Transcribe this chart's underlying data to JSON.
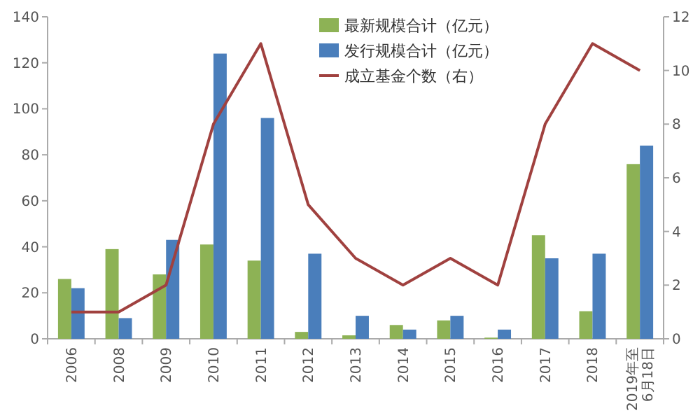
{
  "chart_data": {
    "type": "bar",
    "categories": [
      "2006",
      "2008",
      "2009",
      "2010",
      "2011",
      "2012",
      "2013",
      "2014",
      "2015",
      "2016",
      "2017",
      "2018",
      "2019年至6月18日"
    ],
    "series": [
      {
        "name": "最新规模合计（亿元）",
        "color": "#8db255",
        "values": [
          26,
          39,
          28,
          41,
          34,
          3,
          1.5,
          6,
          8,
          0.5,
          45,
          12,
          76
        ]
      },
      {
        "name": "发行规模合计（亿元）",
        "color": "#4a7ebb",
        "values": [
          22,
          9,
          43,
          124,
          96,
          37,
          10,
          4,
          10,
          4,
          35,
          37,
          84
        ]
      },
      {
        "name": "成立基金个数（右）",
        "color": "#a0413f",
        "type": "line",
        "axis": "y2",
        "values": [
          1,
          1,
          2,
          8,
          11,
          5,
          3,
          2,
          3,
          2,
          8,
          11,
          10
        ]
      }
    ],
    "ylim": [
      0,
      140
    ],
    "yticks": [
      0,
      20,
      40,
      60,
      80,
      100,
      120,
      140
    ],
    "y2lim": [
      0,
      12
    ],
    "y2ticks": [
      0,
      2,
      4,
      6,
      8,
      10,
      12
    ],
    "legend": "top right",
    "grid": false
  }
}
